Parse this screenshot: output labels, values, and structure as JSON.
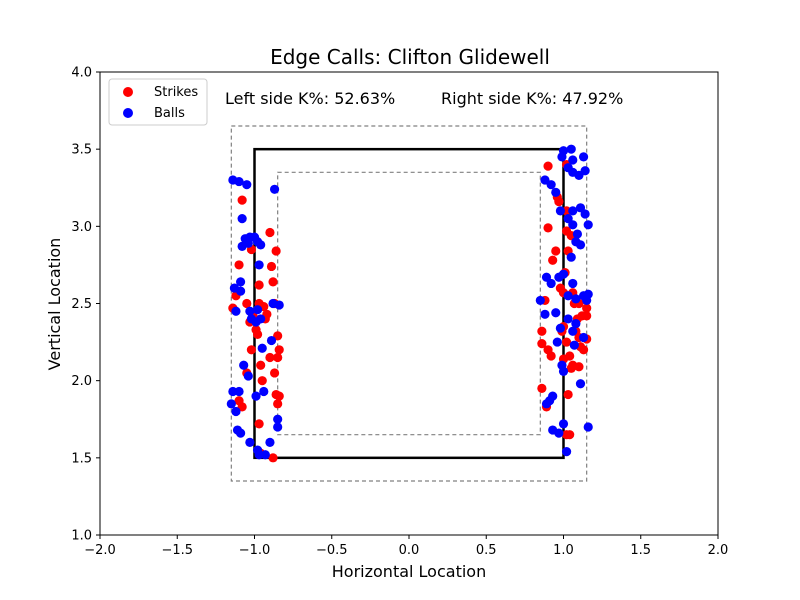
{
  "chart_data": {
    "type": "scatter",
    "title": "Edge Calls: Clifton Glidewell",
    "xlabel": "Horizontal Location",
    "ylabel": "Vertical Location",
    "xlim": [
      -2.0,
      2.0
    ],
    "ylim": [
      1.0,
      4.0
    ],
    "xticks": [
      "-2.0",
      "-1.5",
      "-1.0",
      "-0.5",
      "0.0",
      "0.5",
      "1.0",
      "1.5",
      "2.0"
    ],
    "yticks": [
      "1.0",
      "1.5",
      "2.0",
      "2.5",
      "3.0",
      "3.5",
      "4.0"
    ],
    "grid": false,
    "legend_position": "top-left",
    "annotations": {
      "left": "Left side K%: 52.63%",
      "right": "Right side K%: 47.92%"
    },
    "strike_zone": {
      "x": [
        -1.0,
        1.0
      ],
      "y": [
        1.5,
        3.5
      ],
      "color": "#000000"
    },
    "outer_zone": {
      "x": [
        -1.15,
        1.15
      ],
      "y": [
        1.35,
        3.65
      ],
      "color": "#808080"
    },
    "inner_zone": {
      "x": [
        -0.85,
        0.85
      ],
      "y": [
        1.65,
        3.35
      ],
      "color": "#808080"
    },
    "series": [
      {
        "name": "Strikes",
        "color": "#ff0000",
        "points": [
          [
            -1.12,
            2.55
          ],
          [
            -1.14,
            2.47
          ],
          [
            -1.1,
            2.75
          ],
          [
            -1.08,
            3.17
          ],
          [
            -1.1,
            1.87
          ],
          [
            -1.08,
            1.83
          ],
          [
            -1.05,
            2.5
          ],
          [
            -1.05,
            2.05
          ],
          [
            -1.03,
            2.38
          ],
          [
            -1.02,
            2.2
          ],
          [
            -1.02,
            2.85
          ],
          [
            -1.01,
            2.42
          ],
          [
            -0.99,
            2.33
          ],
          [
            -0.98,
            2.3
          ],
          [
            -0.97,
            2.62
          ],
          [
            -0.97,
            2.5
          ],
          [
            -0.96,
            2.1
          ],
          [
            -0.95,
            2.0
          ],
          [
            -0.94,
            2.48
          ],
          [
            -0.93,
            2.4
          ],
          [
            -0.92,
            2.43
          ],
          [
            -0.9,
            2.96
          ],
          [
            -0.89,
            2.74
          ],
          [
            -0.88,
            2.64
          ],
          [
            -0.87,
            2.5
          ],
          [
            -0.86,
            2.84
          ],
          [
            -0.9,
            2.15
          ],
          [
            -0.87,
            2.05
          ],
          [
            -0.85,
            2.29
          ],
          [
            -0.84,
            2.2
          ],
          [
            -0.85,
            2.15
          ],
          [
            -0.86,
            1.91
          ],
          [
            -0.85,
            1.85
          ],
          [
            -0.84,
            1.9
          ],
          [
            -0.88,
            1.5
          ],
          [
            -0.97,
            1.72
          ],
          [
            -0.96,
            1.53
          ],
          [
            0.9,
            3.39
          ],
          [
            0.9,
            2.99
          ],
          [
            0.93,
            2.78
          ],
          [
            0.95,
            2.84
          ],
          [
            0.96,
            3.19
          ],
          [
            0.97,
            3.16
          ],
          [
            0.98,
            2.6
          ],
          [
            0.99,
            2.32
          ],
          [
            1.0,
            2.35
          ],
          [
            1.0,
            2.57
          ],
          [
            1.01,
            2.7
          ],
          [
            1.02,
            2.97
          ],
          [
            1.03,
            2.84
          ],
          [
            1.05,
            2.94
          ],
          [
            1.06,
            2.57
          ],
          [
            1.07,
            2.5
          ],
          [
            1.08,
            2.32
          ],
          [
            1.09,
            2.4
          ],
          [
            1.1,
            2.28
          ],
          [
            1.1,
            2.5
          ],
          [
            1.11,
            2.22
          ],
          [
            1.12,
            2.42
          ],
          [
            1.15,
            2.47
          ],
          [
            1.15,
            2.42
          ],
          [
            1.05,
            2.08
          ],
          [
            1.03,
            1.91
          ],
          [
            1.0,
            2.14
          ],
          [
            1.02,
            2.25
          ],
          [
            1.04,
            2.16
          ],
          [
            1.06,
            2.1
          ],
          [
            1.1,
            2.09
          ],
          [
            1.13,
            2.2
          ],
          [
            1.15,
            2.27
          ],
          [
            0.88,
            2.52
          ],
          [
            0.86,
            2.32
          ],
          [
            0.86,
            2.24
          ],
          [
            0.9,
            2.2
          ],
          [
            0.92,
            2.16
          ],
          [
            0.86,
            1.95
          ],
          [
            0.89,
            1.83
          ],
          [
            1.02,
            1.65
          ],
          [
            1.04,
            1.65
          ],
          [
            1.02,
            3.1
          ],
          [
            1.02,
            3.4
          ]
        ]
      },
      {
        "name": "Balls",
        "color": "#0000ff",
        "points": [
          [
            -1.14,
            3.3
          ],
          [
            -1.1,
            3.29
          ],
          [
            -1.05,
            3.27
          ],
          [
            -1.08,
            3.05
          ],
          [
            -1.06,
            2.92
          ],
          [
            -1.04,
            2.89
          ],
          [
            -1.08,
            2.87
          ],
          [
            -1.03,
            2.93
          ],
          [
            -1.0,
            2.93
          ],
          [
            -0.98,
            2.9
          ],
          [
            -0.96,
            2.88
          ],
          [
            -0.97,
            2.75
          ],
          [
            -1.09,
            2.64
          ],
          [
            -1.13,
            2.6
          ],
          [
            -1.12,
            2.45
          ],
          [
            -1.09,
            2.58
          ],
          [
            -1.03,
            2.45
          ],
          [
            -1.02,
            2.4
          ],
          [
            -0.99,
            2.38
          ],
          [
            -0.96,
            2.4
          ],
          [
            -0.98,
            2.46
          ],
          [
            -0.88,
            2.5
          ],
          [
            -0.84,
            2.49
          ],
          [
            -0.89,
            2.26
          ],
          [
            -0.95,
            2.21
          ],
          [
            -1.07,
            2.1
          ],
          [
            -1.04,
            2.03
          ],
          [
            -1.14,
            1.93
          ],
          [
            -1.1,
            1.93
          ],
          [
            -1.12,
            1.8
          ],
          [
            -1.15,
            1.85
          ],
          [
            -1.11,
            1.68
          ],
          [
            -1.09,
            1.66
          ],
          [
            -1.03,
            1.6
          ],
          [
            -0.98,
            1.55
          ],
          [
            -0.97,
            1.52
          ],
          [
            -0.93,
            1.52
          ],
          [
            -0.9,
            1.6
          ],
          [
            -0.85,
            1.7
          ],
          [
            -0.85,
            1.75
          ],
          [
            -0.94,
            1.93
          ],
          [
            -0.99,
            1.9
          ],
          [
            -0.87,
            3.24
          ],
          [
            1.0,
            3.49
          ],
          [
            0.99,
            3.45
          ],
          [
            1.05,
            3.5
          ],
          [
            1.06,
            3.43
          ],
          [
            1.13,
            3.45
          ],
          [
            1.03,
            3.38
          ],
          [
            1.1,
            3.33
          ],
          [
            1.14,
            3.36
          ],
          [
            1.06,
            3.35
          ],
          [
            0.88,
            3.3
          ],
          [
            0.92,
            3.27
          ],
          [
            0.95,
            3.22
          ],
          [
            0.98,
            3.1
          ],
          [
            1.06,
            3.1
          ],
          [
            1.11,
            3.12
          ],
          [
            1.14,
            3.08
          ],
          [
            1.16,
            3.01
          ],
          [
            1.03,
            3.05
          ],
          [
            1.06,
            3.01
          ],
          [
            1.09,
            2.95
          ],
          [
            1.11,
            2.88
          ],
          [
            1.08,
            2.9
          ],
          [
            1.05,
            2.8
          ],
          [
            1.0,
            2.69
          ],
          [
            0.97,
            2.67
          ],
          [
            0.92,
            2.63
          ],
          [
            0.89,
            2.67
          ],
          [
            1.06,
            2.63
          ],
          [
            1.03,
            2.55
          ],
          [
            1.08,
            2.53
          ],
          [
            1.13,
            2.55
          ],
          [
            1.16,
            2.56
          ],
          [
            1.15,
            2.52
          ],
          [
            0.85,
            2.52
          ],
          [
            0.88,
            2.43
          ],
          [
            0.95,
            2.44
          ],
          [
            1.06,
            2.32
          ],
          [
            1.08,
            2.37
          ],
          [
            1.03,
            2.4
          ],
          [
            0.96,
            2.25
          ],
          [
            0.99,
            2.1
          ],
          [
            1.0,
            2.06
          ],
          [
            1.07,
            2.23
          ],
          [
            1.13,
            2.28
          ],
          [
            1.11,
            1.98
          ],
          [
            0.93,
            1.9
          ],
          [
            0.91,
            1.87
          ],
          [
            0.89,
            1.85
          ],
          [
            0.93,
            1.68
          ],
          [
            0.97,
            1.66
          ],
          [
            1.0,
            1.72
          ],
          [
            1.02,
            1.54
          ],
          [
            1.16,
            1.7
          ],
          [
            0.98,
            2.34
          ]
        ]
      }
    ]
  }
}
